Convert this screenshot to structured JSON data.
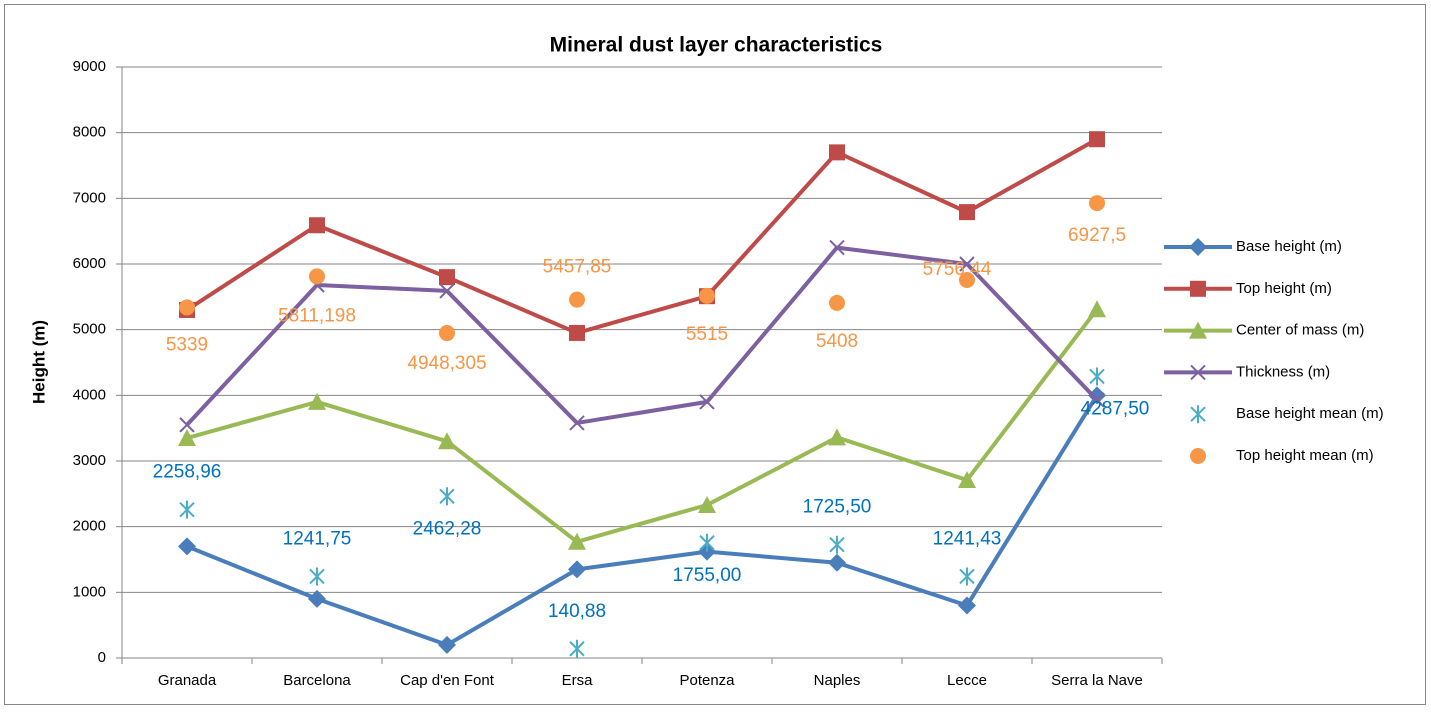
{
  "chart_data": {
    "type": "line",
    "title": "Mineral dust layer characteristics",
    "y_label": "Height (m)",
    "categories": [
      "Granada",
      "Barcelona",
      "Cap d'en Font",
      "Ersa",
      "Potenza",
      "Naples",
      "Lecce",
      "Serra la Nave"
    ],
    "ylim": [
      0,
      9000
    ],
    "yticks": [
      0,
      1000,
      2000,
      3000,
      4000,
      5000,
      6000,
      7000,
      8000,
      9000
    ],
    "grid": true,
    "legend": "right",
    "series": [
      {
        "name": "Base height (m)",
        "color": "#4a7ebb",
        "marker": "diamond",
        "style": "line",
        "values": [
          1700,
          900,
          200,
          1350,
          1620,
          1450,
          800,
          4000
        ]
      },
      {
        "name": "Top height (m)",
        "color": "#be4b48",
        "marker": "square",
        "style": "line",
        "values": [
          5300,
          6590,
          5800,
          4950,
          5510,
          7700,
          6790,
          7900
        ]
      },
      {
        "name": "Center of mass (m)",
        "color": "#98b954",
        "marker": "triangle",
        "style": "line",
        "values": [
          3350,
          3900,
          3300,
          1770,
          2330,
          3360,
          2710,
          5310
        ]
      },
      {
        "name": "Thickness (m)",
        "color": "#7d60a0",
        "marker": "x",
        "style": "line",
        "values": [
          3550,
          5680,
          5590,
          3580,
          3900,
          6250,
          6000,
          3930
        ]
      },
      {
        "name": "Base height mean (m)",
        "color": "#4bacc6",
        "marker": "star",
        "style": "scatter",
        "label_color": "#0070c0",
        "values": [
          2258.96,
          1241.75,
          2462.28,
          140.88,
          1755.0,
          1725.5,
          1241.43,
          4287.5
        ],
        "value_labels": [
          "2258,96",
          "1241,75",
          "2462,28",
          "140,88",
          "1755,00",
          "1725,50",
          "1241,43",
          "4287,50"
        ]
      },
      {
        "name": "Top height mean (m)",
        "color": "#f79646",
        "marker": "circle",
        "style": "scatter",
        "label_color": "#f79646",
        "values": [
          5339,
          5811.198,
          4948.305,
          5457.85,
          5515,
          5408,
          5756.44,
          6927.5
        ],
        "value_labels": [
          "5339",
          "5811,198",
          "4948,305",
          "5457,85",
          "5515",
          "5408",
          "5756,44",
          "6927,5"
        ]
      }
    ]
  }
}
